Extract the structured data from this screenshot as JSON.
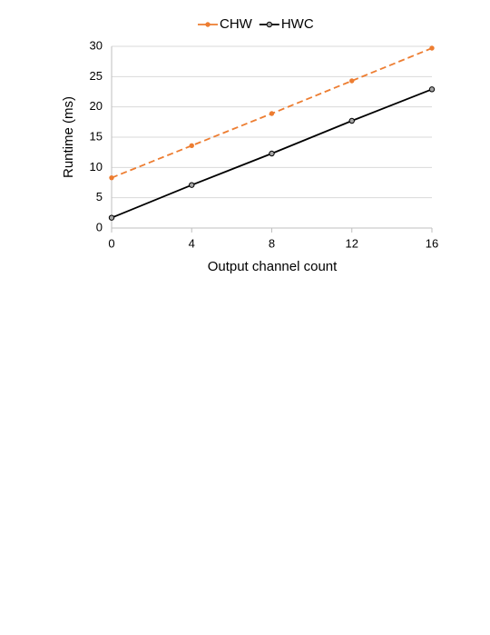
{
  "chart_data": {
    "type": "line",
    "x_label": "Output channel count",
    "y_label": "Runtime (ms)",
    "x": [
      0,
      4,
      8,
      12,
      16
    ],
    "series": [
      {
        "name": "CHW",
        "color": "#ed7d31",
        "dashed": true,
        "values": [
          8.3,
          13.6,
          18.9,
          24.3,
          29.7
        ]
      },
      {
        "name": "HWC",
        "color": "#000000",
        "dashed": false,
        "values": [
          1.7,
          7.1,
          12.3,
          17.7,
          22.9
        ]
      }
    ],
    "xlim": [
      0,
      16
    ],
    "xticks": [
      0,
      4,
      8,
      12,
      16
    ],
    "ylim": [
      0,
      30
    ],
    "yticks": [
      0,
      5,
      10,
      15,
      20,
      25,
      30
    ],
    "grid": true,
    "legend": "top"
  }
}
